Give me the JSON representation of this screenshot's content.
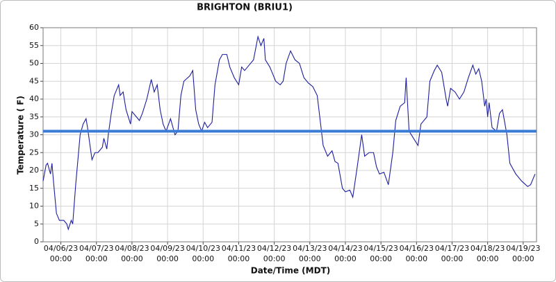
{
  "chart_data": {
    "type": "line",
    "title": "BRIGHTON (BRIU1)",
    "xlabel": "Date/Time (MDT)",
    "ylabel": "Temperature ( F)",
    "x": [
      "04/05/23 12:00",
      "04/05/23 14:00",
      "04/05/23 15:00",
      "04/05/23 17:00",
      "04/05/23 18:00",
      "04/05/23 19:00",
      "04/05/23 21:00",
      "04/05/23 23:00",
      "04/06/23 02:00",
      "04/06/23 04:00",
      "04/06/23 05:00",
      "04/06/23 07:00",
      "04/06/23 08:00",
      "04/06/23 10:00",
      "04/06/23 13:00",
      "04/06/23 15:00",
      "04/06/23 17:00",
      "04/06/23 18:00",
      "04/06/23 21:00",
      "04/06/23 23:00",
      "04/07/23 01:00",
      "04/07/23 04:00",
      "04/07/23 05:00",
      "04/07/23 07:00",
      "04/07/23 08:00",
      "04/07/23 10:00",
      "04/07/23 12:00",
      "04/07/23 15:00",
      "04/07/23 16:00",
      "04/07/23 18:00",
      "04/07/23 20:00",
      "04/07/23 23:00",
      "04/08/23 00:00",
      "04/08/23 03:00",
      "04/08/23 05:00",
      "04/08/23 07:00",
      "04/08/23 10:00",
      "04/08/23 13:00",
      "04/08/23 15:00",
      "04/08/23 17:00",
      "04/08/23 19:00",
      "04/08/23 21:00",
      "04/08/23 23:00",
      "04/09/23 02:00",
      "04/09/23 05:00",
      "04/09/23 07:00",
      "04/09/23 09:00",
      "04/09/23 11:00",
      "04/09/23 15:00",
      "04/09/23 17:00",
      "04/09/23 19:00",
      "04/09/23 21:00",
      "04/09/23 23:00",
      "04/10/23 01:00",
      "04/10/23 03:00",
      "04/10/23 06:00",
      "04/10/23 08:00",
      "04/10/23 11:00",
      "04/10/23 13:00",
      "04/10/23 16:00",
      "04/10/23 18:00",
      "04/10/23 21:00",
      "04/11/23 00:00",
      "04/11/23 02:00",
      "04/11/23 04:00",
      "04/11/23 07:00",
      "04/11/23 10:00",
      "04/11/23 13:00",
      "04/11/23 15:00",
      "04/11/23 17:00",
      "04/11/23 18:00",
      "04/11/23 21:00",
      "04/11/23 23:00",
      "04/12/23 01:00",
      "04/12/23 04:00",
      "04/12/23 06:00",
      "04/12/23 08:00",
      "04/12/23 11:00",
      "04/12/23 14:00",
      "04/12/23 17:00",
      "04/12/23 20:00",
      "04/12/23 23:00",
      "04/13/23 02:00",
      "04/13/23 05:00",
      "04/13/23 07:00",
      "04/13/23 09:00",
      "04/13/23 12:00",
      "04/13/23 15:00",
      "04/13/23 17:00",
      "04/13/23 19:00",
      "04/13/23 22:00",
      "04/14/23 00:00",
      "04/14/23 03:00",
      "04/14/23 05:00",
      "04/14/23 08:00",
      "04/14/23 11:00",
      "04/14/23 13:00",
      "04/14/23 16:00",
      "04/14/23 19:00",
      "04/14/23 21:00",
      "04/14/23 23:00",
      "04/15/23 02:00",
      "04/15/23 05:00",
      "04/15/23 08:00",
      "04/15/23 10:00",
      "04/15/23 13:00",
      "04/15/23 16:00",
      "04/15/23 17:00",
      "04/15/23 19:00",
      "04/15/23 22:00",
      "04/16/23 01:00",
      "04/16/23 03:00",
      "04/16/23 07:00",
      "04/16/23 09:00",
      "04/16/23 12:00",
      "04/16/23 14:00",
      "04/16/23 17:00",
      "04/16/23 20:00",
      "04/16/23 21:00",
      "04/16/23 23:00",
      "04/17/23 02:00",
      "04/17/23 05:00",
      "04/17/23 08:00",
      "04/17/23 11:00",
      "04/17/23 14:00",
      "04/17/23 16:00",
      "04/17/23 18:00",
      "04/17/23 20:00",
      "04/17/23 22:00",
      "04/17/23 23:00",
      "04/18/23 00:00",
      "04/18/23 01:00",
      "04/18/23 03:00",
      "04/18/23 06:00",
      "04/18/23 08:00",
      "04/18/23 10:00",
      "04/18/23 13:00",
      "04/18/23 15:00",
      "04/18/23 19:00",
      "04/18/23 23:00",
      "04/19/23 03:00",
      "04/19/23 05:00",
      "04/19/23 08:00"
    ],
    "series": [
      {
        "color": "#1c1c9e",
        "values": [
          17,
          21.5,
          22,
          19,
          22,
          17,
          8,
          6,
          6,
          5,
          3.5,
          6,
          5,
          16,
          30,
          33,
          34.5,
          32,
          23,
          25,
          25,
          26.5,
          29,
          26,
          30,
          36,
          41,
          44,
          41,
          42,
          37,
          33,
          36.5,
          35,
          34,
          36,
          40,
          45.5,
          42,
          44,
          37,
          33,
          31,
          34.5,
          30,
          31,
          41,
          45,
          46.5,
          48,
          37,
          33,
          31,
          33.5,
          32,
          33.5,
          44,
          51,
          52.5,
          52.5,
          49,
          46,
          44,
          49,
          48,
          49.5,
          51,
          57.5,
          55,
          57,
          51,
          49,
          47,
          45,
          44,
          45,
          50,
          53.5,
          51,
          50,
          46,
          44.5,
          43.5,
          41,
          34,
          27,
          24,
          25.5,
          22.5,
          22,
          15,
          14,
          14.5,
          12.5,
          21,
          30,
          24,
          25,
          25,
          21,
          19,
          19.5,
          16,
          25,
          34,
          38,
          39,
          46,
          31,
          29,
          27,
          33,
          35,
          45,
          48,
          49.5,
          47.5,
          40,
          38,
          43,
          42,
          40,
          42,
          46,
          49.5,
          47,
          48.5,
          45,
          38,
          40,
          35,
          39,
          32,
          31,
          36,
          37,
          30,
          22,
          19,
          17,
          15.5,
          16,
          19
        ]
      }
    ],
    "reference_line": {
      "value": 31,
      "color": "#3a7bd5"
    },
    "xlim": [
      "04/05/23 12:00",
      "04/19/23 09:00"
    ],
    "xticks": [
      {
        "date": "04/06/23",
        "time": "00:00"
      },
      {
        "date": "04/07/23",
        "time": "00:00"
      },
      {
        "date": "04/08/23",
        "time": "00:00"
      },
      {
        "date": "04/09/23",
        "time": "00:00"
      },
      {
        "date": "04/10/23",
        "time": "00:00"
      },
      {
        "date": "04/11/23",
        "time": "00:00"
      },
      {
        "date": "04/12/23",
        "time": "00:00"
      },
      {
        "date": "04/13/23",
        "time": "00:00"
      },
      {
        "date": "04/14/23",
        "time": "00:00"
      },
      {
        "date": "04/15/23",
        "time": "00:00"
      },
      {
        "date": "04/16/23",
        "time": "00:00"
      },
      {
        "date": "04/17/23",
        "time": "00:00"
      },
      {
        "date": "04/18/23",
        "time": "00:00"
      },
      {
        "date": "04/19/23",
        "time": "00:00"
      }
    ],
    "ylim": [
      0,
      60
    ],
    "yticks": [
      0,
      5,
      10,
      15,
      20,
      25,
      30,
      35,
      40,
      45,
      50,
      55,
      60
    ],
    "grid": true
  }
}
